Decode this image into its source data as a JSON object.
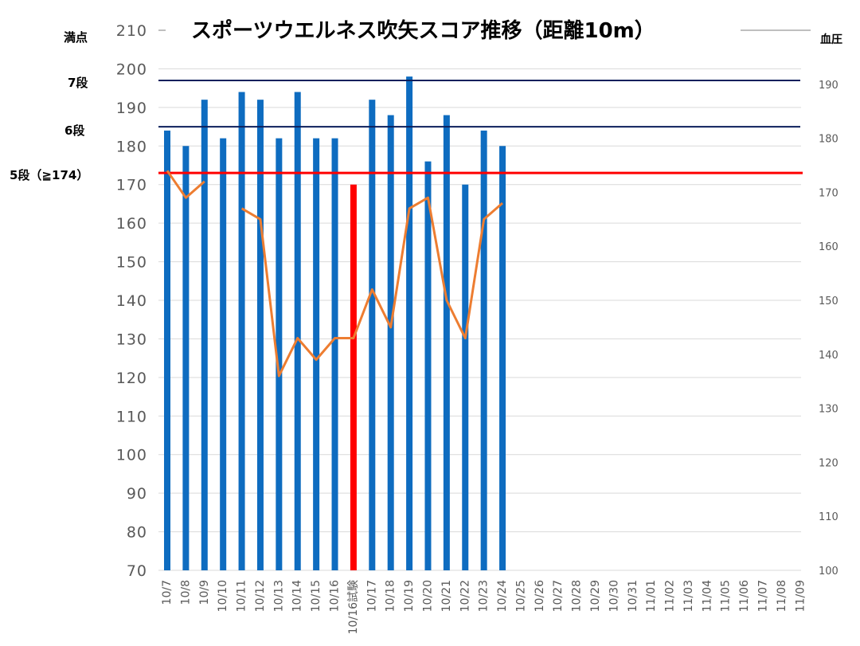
{
  "chart_data": {
    "type": "bar",
    "title": "スポーツウエルネス吹矢スコア推移（距離10m）",
    "categories": [
      "10/7",
      "10/8",
      "10/9",
      "10/10",
      "10/11",
      "10/12",
      "10/13",
      "10/14",
      "10/15",
      "10/16",
      "10/16試験",
      "10/17",
      "10/18",
      "10/19",
      "10/20",
      "10/21",
      "10/22",
      "10/23",
      "10/24",
      "10/25",
      "10/26",
      "10/27",
      "10/28",
      "10/29",
      "10/30",
      "10/31",
      "11/01",
      "11/02",
      "11/03",
      "11/04",
      "11/05",
      "11/06",
      "11/07",
      "11/08",
      "11/09"
    ],
    "series": [
      {
        "kind": "bar",
        "axis": "left",
        "color": "#0e6cc0",
        "highlight": {
          "index": 10,
          "color": "#ff0000"
        },
        "values": [
          184,
          180,
          192,
          182,
          194,
          192,
          182,
          194,
          182,
          182,
          170,
          192,
          188,
          198,
          176,
          188,
          170,
          184,
          180,
          null,
          null,
          null,
          null,
          null,
          null,
          null,
          null,
          null,
          null,
          null,
          null,
          null,
          null,
          null,
          null
        ]
      },
      {
        "kind": "line",
        "axis": "right",
        "color": "#ed7d31",
        "values": [
          174,
          169,
          172,
          null,
          167,
          165,
          136,
          143,
          139,
          143,
          143,
          152,
          145,
          167,
          169,
          150,
          143,
          165,
          168,
          null,
          null,
          null,
          null,
          null,
          null,
          null,
          null,
          null,
          null,
          null,
          null,
          null,
          null,
          null,
          null
        ]
      }
    ],
    "y_left": {
      "min": 70,
      "max": 210,
      "ticks": [
        70,
        80,
        90,
        100,
        110,
        120,
        130,
        140,
        150,
        160,
        170,
        180,
        190,
        200,
        210
      ]
    },
    "y_right": {
      "label": "血圧",
      "min": 100,
      "max": 200,
      "ticks": [
        100,
        110,
        120,
        130,
        140,
        150,
        160,
        170,
        180,
        190
      ]
    },
    "grid": true,
    "reference_lines": [
      {
        "value": 197,
        "color": "#0b1f5c",
        "label": "7段",
        "label_color": "#000000"
      },
      {
        "value": 185,
        "color": "#0b1f5c",
        "label": "6段",
        "label_color": "#000000"
      },
      {
        "value": 173,
        "color": "#ff0000",
        "label": "5段（≧174）",
        "label_color": "#ff0000"
      }
    ],
    "top_label": {
      "text": "満点",
      "color": "#ff0000"
    }
  }
}
